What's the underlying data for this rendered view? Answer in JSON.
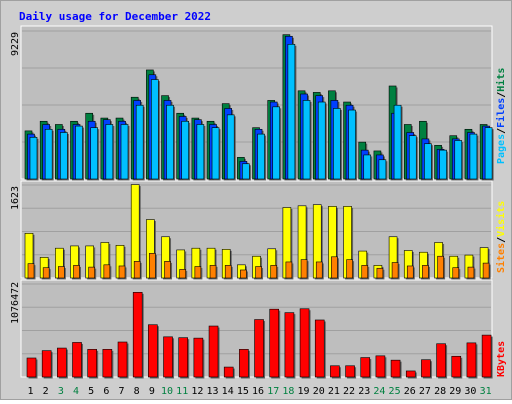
{
  "title": "Daily usage for December 2022",
  "colors": {
    "hits": "#008040",
    "files": "#0040ff",
    "pages": "#00c0ff",
    "visits": "#ffff00",
    "sites": "#ff8000",
    "kbytes": "#ff0000",
    "title": "#0000ff",
    "weekend": "#008040",
    "weekday": "#000000",
    "panel": "#bebebe"
  },
  "chart_data": [
    {
      "type": "bar",
      "panel": "top",
      "ylabel": "9229",
      "ymax": 9229,
      "legend": [
        "Pages",
        "Files",
        "Hits"
      ],
      "legend_position": "right",
      "series": [
        {
          "name": "Hits",
          "color": "#008040",
          "values": [
            3000,
            3600,
            3400,
            3600,
            4100,
            3800,
            3800,
            5100,
            6800,
            5200,
            4100,
            3800,
            3600,
            4700,
            1350,
            3200,
            4900,
            9000,
            5500,
            5400,
            5500,
            4800,
            2300,
            1750,
            5800,
            3400,
            3600,
            2100,
            2700,
            3100,
            3400
          ]
        },
        {
          "name": "Files",
          "color": "#0040ff",
          "values": [
            2800,
            3400,
            3100,
            3400,
            3600,
            3700,
            3600,
            4900,
            6500,
            4900,
            3900,
            3700,
            3400,
            4400,
            1100,
            3100,
            4800,
            8900,
            5300,
            5200,
            4900,
            4600,
            1800,
            1500,
            4100,
            2900,
            2500,
            1850,
            2500,
            2900,
            3300
          ]
        },
        {
          "name": "Pages",
          "color": "#00c0ff",
          "values": [
            2600,
            3100,
            2900,
            3300,
            3200,
            3400,
            3400,
            4600,
            6200,
            4600,
            3600,
            3400,
            3200,
            4000,
            950,
            2800,
            4500,
            8400,
            4900,
            4800,
            4400,
            4300,
            1500,
            1200,
            4600,
            2700,
            2200,
            1800,
            2400,
            2800,
            3200
          ]
        }
      ]
    },
    {
      "type": "bar",
      "panel": "middle",
      "ylabel": "1623",
      "ymax": 1623,
      "legend": [
        "Sites",
        "Visits"
      ],
      "legend_position": "right",
      "series": [
        {
          "name": "Visits",
          "color": "#ffff00",
          "values": [
            780,
            360,
            520,
            560,
            560,
            620,
            570,
            1630,
            1020,
            720,
            490,
            520,
            520,
            500,
            230,
            380,
            510,
            1230,
            1260,
            1280,
            1250,
            1250,
            470,
            220,
            720,
            480,
            450,
            620,
            380,
            400,
            530
          ]
        },
        {
          "name": "Sites",
          "color": "#ff8000",
          "values": [
            250,
            180,
            200,
            220,
            190,
            230,
            210,
            290,
            430,
            290,
            150,
            200,
            220,
            220,
            140,
            200,
            220,
            280,
            320,
            280,
            370,
            320,
            220,
            170,
            270,
            210,
            220,
            380,
            180,
            190,
            260
          ]
        }
      ]
    },
    {
      "type": "bar",
      "panel": "bottom",
      "ylabel": "1076472",
      "ymax": 1076472,
      "legend": [
        "KBytes"
      ],
      "legend_position": "right",
      "series": [
        {
          "name": "KBytes",
          "color": "#ff0000",
          "values": [
            220000,
            305000,
            335000,
            400000,
            320000,
            320000,
            405000,
            980000,
            605000,
            465000,
            455000,
            450000,
            590000,
            115000,
            320000,
            665000,
            785000,
            745000,
            790000,
            660000,
            130000,
            130000,
            225000,
            245000,
            195000,
            70000,
            200000,
            385000,
            240000,
            395000,
            485000
          ]
        }
      ]
    }
  ],
  "days": [
    "1",
    "2",
    "3",
    "4",
    "5",
    "6",
    "7",
    "8",
    "9",
    "10",
    "11",
    "12",
    "13",
    "14",
    "15",
    "16",
    "17",
    "18",
    "19",
    "20",
    "21",
    "22",
    "23",
    "24",
    "25",
    "26",
    "27",
    "28",
    "29",
    "30",
    "31"
  ],
  "weekend_days": [
    3,
    4,
    10,
    11,
    17,
    18,
    24,
    25,
    31
  ]
}
